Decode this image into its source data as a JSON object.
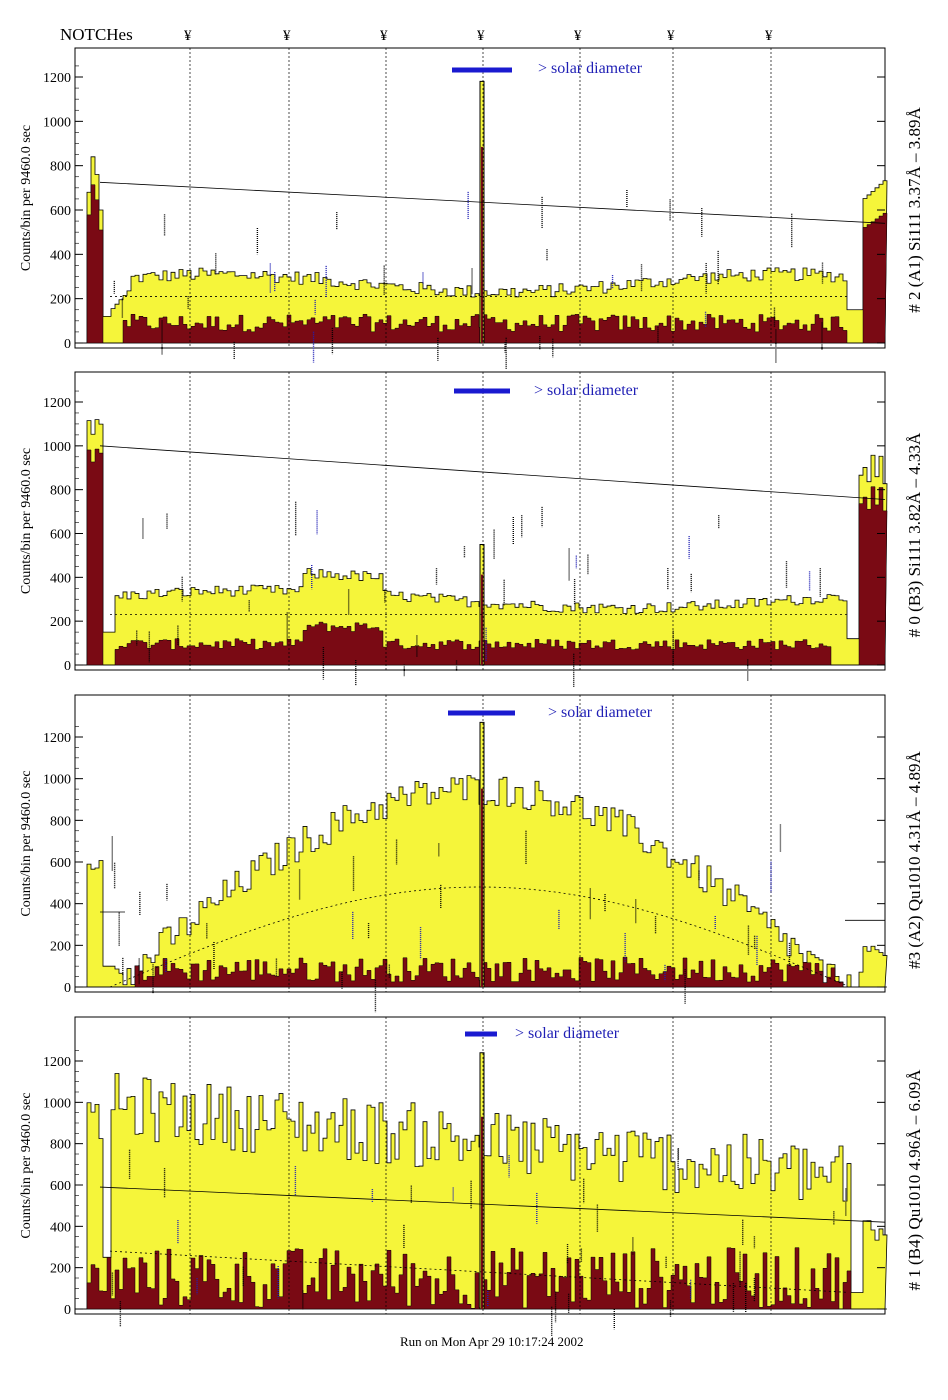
{
  "header": {
    "notches_label": "NOTCHes",
    "notch_symbol": "¥",
    "notch_positions": [
      190,
      289,
      386,
      483,
      580,
      673,
      771
    ]
  },
  "footer": {
    "run_text": "Run on Mon Apr 29 10:17:24 2002"
  },
  "colors": {
    "yellow_fill": "#f5f53a",
    "dark_fill": "#7a0a14",
    "line": "#000000",
    "annotation_blue": "#1f1fb5",
    "frame": "#000000"
  },
  "chart_data": [
    {
      "type": "area",
      "ylabel": "Counts/bin per   9460.0 sec",
      "right_label": "# 2 (A1) Si111  3.37Å – 3.89Å",
      "note": "> solar diameter",
      "ylim": [
        0,
        1300
      ],
      "yticks": [
        0,
        200,
        400,
        600,
        800,
        1000,
        1200
      ],
      "peak_value": 1180,
      "fit_line": [
        725,
        540
      ]
    },
    {
      "type": "area",
      "ylabel": "Counts/bin per   9460.0 sec",
      "right_label": "# 0 (B3) Si111  3.82Å – 4.33Å",
      "note": "> solar diameter",
      "ylim": [
        0,
        1300
      ],
      "yticks": [
        0,
        200,
        400,
        600,
        800,
        1000,
        1200
      ],
      "peak_value": 550,
      "fit_line": [
        1000,
        755
      ]
    },
    {
      "type": "area",
      "ylabel": "Counts/bin per   9460.0 sec",
      "right_label": "#3 (A2) Qu1010  4.31Å – 4.89Å",
      "note": "> solar diameter",
      "ylim": [
        0,
        1300
      ],
      "yticks": [
        0,
        200,
        400,
        600,
        800,
        1000,
        1200
      ],
      "peak_value": 1270,
      "fit_line": [
        0,
        0
      ]
    },
    {
      "type": "area",
      "ylabel": "Counts/bin per   9460.0 sec",
      "right_label": "# 1 (B4) Qu1010 4.96Å – 6.09Å",
      "note": "> solar diameter",
      "ylim": [
        0,
        1300
      ],
      "yticks": [
        0,
        200,
        400,
        600,
        800,
        1000,
        1200
      ],
      "peak_value": 1240,
      "fit_line": [
        590,
        420
      ]
    }
  ]
}
